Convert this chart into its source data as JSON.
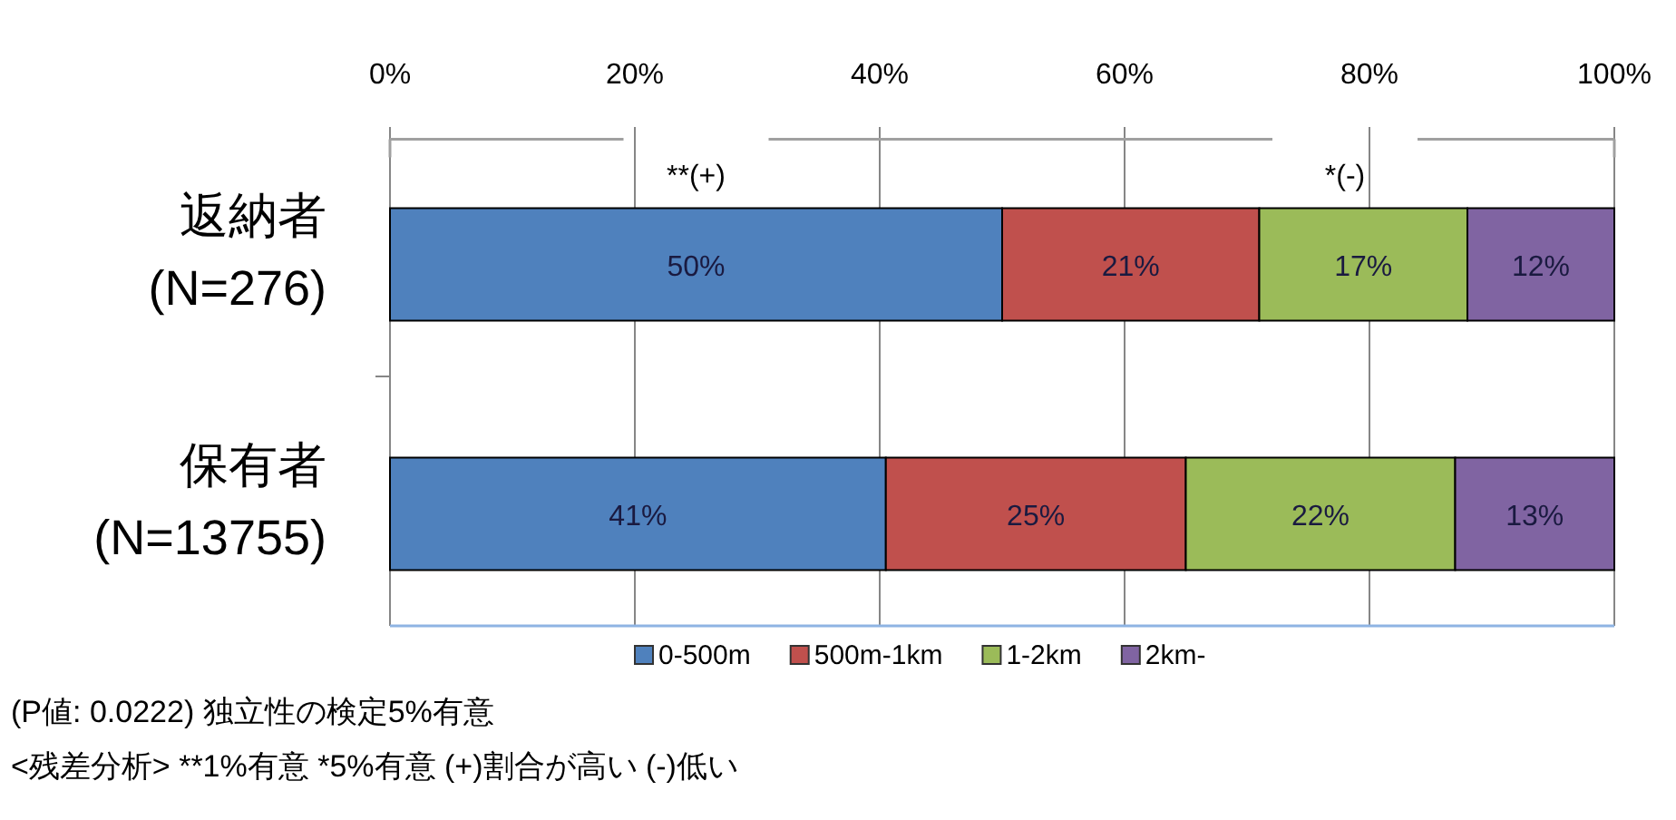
{
  "chart_data": {
    "type": "bar",
    "orientation": "horizontal",
    "stacked": true,
    "categories": [
      "返納者\n(N=276)",
      "保有者\n(N=13755)"
    ],
    "series": [
      {
        "name": "0-500m",
        "color": "#4f81bd",
        "values": [
          50,
          40.5
        ],
        "value_labels": [
          "50%",
          "41%"
        ]
      },
      {
        "name": "500m-1km",
        "color": "#c0504d",
        "values": [
          21,
          24.5
        ],
        "value_labels": [
          "21%",
          "25%"
        ]
      },
      {
        "name": "1-2km",
        "color": "#9bbb59",
        "values": [
          17,
          22
        ],
        "value_labels": [
          "17%",
          "22%"
        ]
      },
      {
        "name": "2km-",
        "color": "#8064a2",
        "values": [
          12,
          13
        ],
        "value_labels": [
          "12%",
          "13%"
        ]
      }
    ],
    "xlim": [
      0,
      100
    ],
    "xticks": [
      {
        "value": 0,
        "label": "0%"
      },
      {
        "value": 20,
        "label": "20%"
      },
      {
        "value": 40,
        "label": "40%"
      },
      {
        "value": 60,
        "label": "60%"
      },
      {
        "value": 80,
        "label": "80%"
      },
      {
        "value": 100,
        "label": "100%"
      }
    ],
    "grid": "x",
    "legend": "bottom",
    "annotations": [
      "**(+)",
      "*(-)",
      "(P値: 0.0222) 独立性の検定5%有意",
      "<残差分析> **1%有意 *5%有意 (+)割合が高い (-)低い"
    ]
  }
}
